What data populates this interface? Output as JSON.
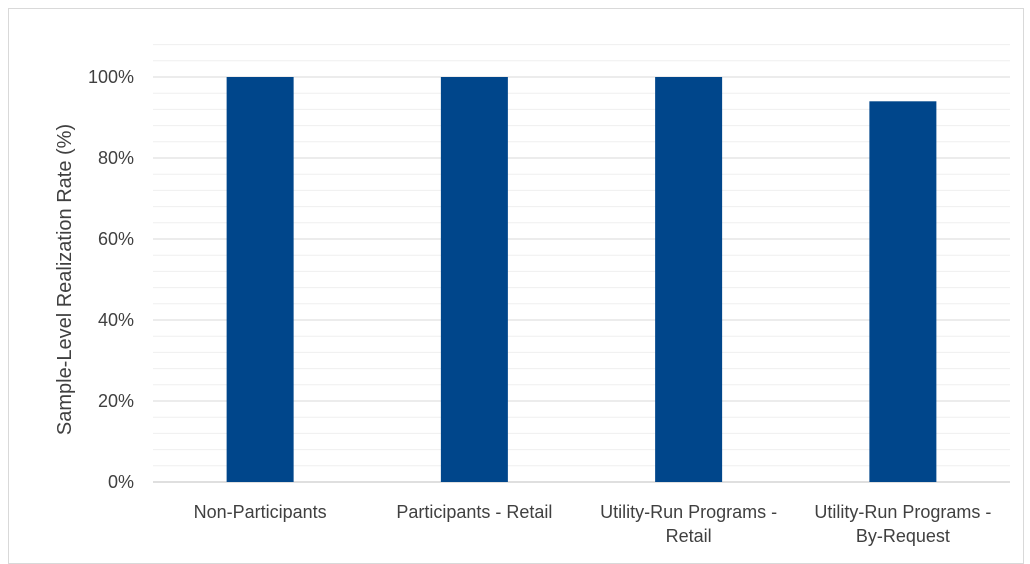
{
  "chart_data": {
    "type": "bar",
    "title": "",
    "xlabel": "",
    "ylabel": "Sample-Level Realization Rate (%)",
    "categories": [
      [
        "Non-Participants"
      ],
      [
        "Participants - Retail"
      ],
      [
        "Utility-Run Programs -",
        "Retail"
      ],
      [
        "Utility-Run Programs -",
        "By-Request"
      ]
    ],
    "values": [
      100,
      100,
      100,
      94
    ],
    "ylim": [
      0,
      100
    ],
    "yticks": [
      0,
      20,
      40,
      60,
      80,
      100
    ],
    "ytick_labels": [
      "0%",
      "20%",
      "40%",
      "60%",
      "80%",
      "100%"
    ],
    "grid": true,
    "legend": "none",
    "colors": {
      "bar": "#00468b",
      "grid": "#d9d9d9",
      "axis": "#bfbfbf",
      "text": "#404040"
    }
  }
}
